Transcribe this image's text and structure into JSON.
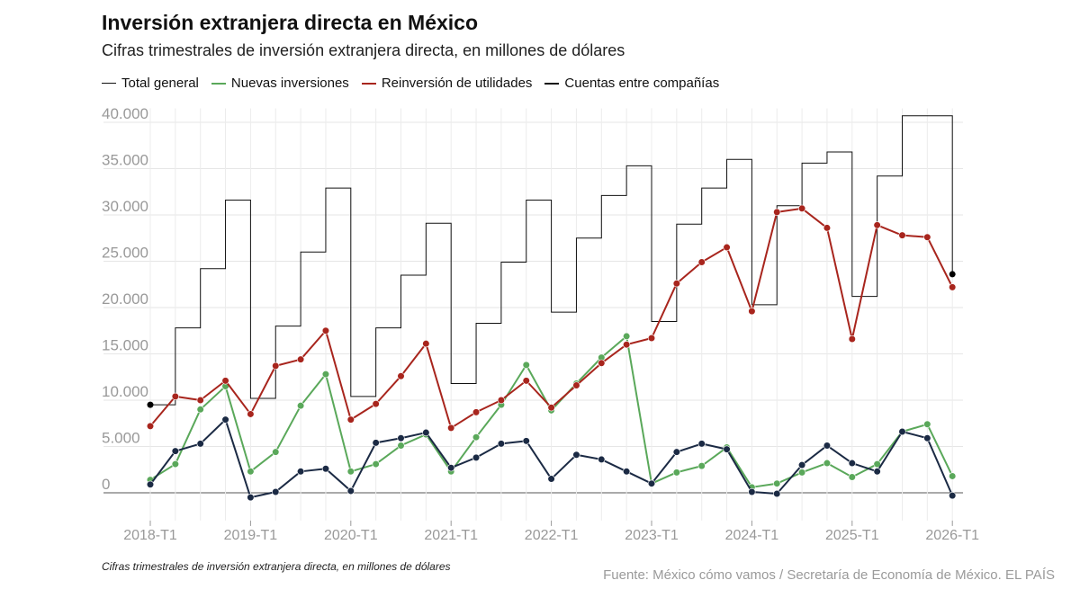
{
  "header": {
    "title": "Inversión extranjera directa en México",
    "subtitle": "Cifras trimestrales de inversión extranjera directa, en millones de dólares"
  },
  "footer": {
    "note": "Cifras trimestrales de inversión extranjera directa, en millones de dólares",
    "source": "Fuente: México cómo vamos / Secretaría de Economía de México. EL PAÍS"
  },
  "chart_data": {
    "type": "line",
    "x_tick_labels": [
      "2018-T1",
      "2019-T1",
      "2020-T1",
      "2021-T1",
      "2022-T1",
      "2023-T1",
      "2024-T1",
      "2025-T1",
      "2026-T1"
    ],
    "y_tick_labels": [
      "0",
      "5.000",
      "10.000",
      "15.000",
      "20.000",
      "25.000",
      "30.000",
      "35.000",
      "40.000"
    ],
    "ylim": [
      -3000,
      41500
    ],
    "grid": true,
    "legend_position": "top-left",
    "x": [
      "2018-T1",
      "2018-T2",
      "2018-T3",
      "2018-T4",
      "2019-T1",
      "2019-T2",
      "2019-T3",
      "2019-T4",
      "2020-T1",
      "2020-T2",
      "2020-T3",
      "2020-T4",
      "2021-T1",
      "2021-T2",
      "2021-T3",
      "2021-T4",
      "2022-T1",
      "2022-T2",
      "2022-T3",
      "2022-T4",
      "2023-T1",
      "2023-T2",
      "2023-T3",
      "2023-T4",
      "2024-T1",
      "2024-T2",
      "2024-T3",
      "2024-T4",
      "2025-T1",
      "2025-T2",
      "2025-T3",
      "2025-T4",
      "2026-T1"
    ],
    "series": [
      {
        "name": "Total general",
        "color": "#111111",
        "style": "step",
        "show_markers": false,
        "values": [
          9500,
          17800,
          24200,
          31600,
          10200,
          18000,
          26000,
          32900,
          10400,
          17800,
          23500,
          29100,
          11800,
          18300,
          24900,
          31600,
          19500,
          27500,
          32100,
          35300,
          18500,
          29000,
          32900,
          36000,
          20300,
          31000,
          35600,
          36800,
          21200,
          34200,
          40700,
          40700,
          23600
        ]
      },
      {
        "name": "Nuevas inversiones",
        "color": "#5aa85a",
        "style": "line",
        "show_markers": true,
        "values": [
          1400,
          3100,
          9000,
          11500,
          2300,
          4400,
          9400,
          12800,
          2300,
          3100,
          5100,
          6300,
          2300,
          6000,
          9500,
          13800,
          8900,
          11800,
          14600,
          16900,
          1000,
          2200,
          2900,
          4900,
          600,
          1000,
          2200,
          3200,
          1700,
          3100,
          6600,
          7400,
          1800
        ]
      },
      {
        "name": "Reinversión de utilidades",
        "color": "#a8251d",
        "style": "line",
        "show_markers": true,
        "values": [
          7200,
          10400,
          10000,
          12100,
          8500,
          13700,
          14400,
          17500,
          7900,
          9600,
          12600,
          16100,
          7000,
          8700,
          10000,
          12100,
          9200,
          11600,
          14000,
          16000,
          16700,
          22600,
          24900,
          26500,
          19600,
          30300,
          30700,
          28600,
          16600,
          28900,
          27800,
          27600,
          22200
        ]
      },
      {
        "name": "Cuentas entre compañías",
        "color": "#1b2a44",
        "style": "line",
        "show_markers": true,
        "values": [
          900,
          4500,
          5300,
          7900,
          -500,
          100,
          2300,
          2600,
          200,
          5400,
          5900,
          6500,
          2700,
          3800,
          5300,
          5600,
          1500,
          4100,
          3600,
          2300,
          1000,
          4400,
          5300,
          4700,
          100,
          -100,
          3000,
          5100,
          3200,
          2300,
          6600,
          5900,
          -300
        ]
      }
    ]
  }
}
